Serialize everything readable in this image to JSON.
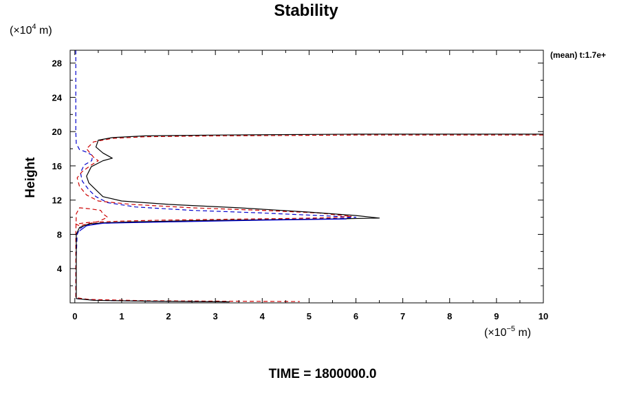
{
  "chart_data": {
    "type": "line",
    "title": "Stability",
    "ylabel": "Height",
    "y_unit": {
      "prefix": "(×10",
      "exp": "4",
      "suffix": " m)"
    },
    "x_unit": {
      "prefix": "(×10",
      "exp": "−5",
      "suffix": " m)"
    },
    "corner_note": "(mean) t:1.7e+",
    "footer": "TIME = 1800000.0",
    "xlim": [
      -0.1,
      10
    ],
    "ylim": [
      0,
      29.5
    ],
    "x_ticks": [
      0,
      1,
      2,
      3,
      4,
      5,
      6,
      7,
      8,
      9,
      10
    ],
    "x_tick_labels": [
      "0",
      "1",
      "2",
      "3",
      "4",
      "5",
      "6",
      "7",
      "8",
      "9",
      "10"
    ],
    "y_ticks": [
      4,
      8,
      12,
      16,
      20,
      24,
      28
    ],
    "y_tick_labels": [
      "4",
      "8",
      "12",
      "16",
      "20",
      "24",
      "28"
    ],
    "series": [
      {
        "color": "#0000cc",
        "dash": "6,4",
        "points": [
          [
            0.02,
            29.5
          ],
          [
            0.02,
            28
          ],
          [
            0.02,
            24
          ],
          [
            0.02,
            20
          ],
          [
            0.03,
            18.6
          ],
          [
            0.1,
            17.9
          ],
          [
            0.25,
            17.6
          ],
          [
            0.38,
            17.2
          ],
          [
            0.36,
            16.6
          ],
          [
            0.2,
            16.1
          ],
          [
            0.12,
            15.2
          ],
          [
            0.16,
            14.2
          ],
          [
            0.3,
            13.2
          ],
          [
            0.45,
            12.4
          ],
          [
            0.7,
            11.7
          ],
          [
            1.3,
            11.2
          ],
          [
            2.5,
            10.8
          ],
          [
            4.0,
            10.5
          ],
          [
            5.2,
            10.2
          ],
          [
            6.0,
            10.0
          ],
          [
            5.6,
            9.85
          ],
          [
            4.4,
            9.75
          ],
          [
            3.0,
            9.62
          ],
          [
            1.8,
            9.5
          ],
          [
            1.0,
            9.38
          ],
          [
            0.45,
            9.25
          ],
          [
            0.2,
            9.05
          ],
          [
            0.1,
            8.6
          ],
          [
            0.05,
            8
          ],
          [
            0.02,
            4
          ],
          [
            0.02,
            0.5
          ],
          [
            0.5,
            0.3
          ],
          [
            1.5,
            0.2
          ],
          [
            2.5,
            0.15
          ],
          [
            3.2,
            0.12
          ]
        ]
      },
      {
        "color": "#cc0000",
        "dash": "6,4",
        "points": [
          [
            10,
            19.6
          ],
          [
            6,
            19.6
          ],
          [
            3,
            19.5
          ],
          [
            1.5,
            19.4
          ],
          [
            0.8,
            19.2
          ],
          [
            0.4,
            18.8
          ],
          [
            0.25,
            18
          ],
          [
            0.4,
            17
          ],
          [
            0.5,
            16.6
          ],
          [
            0.35,
            16.1
          ],
          [
            0.15,
            15.3
          ],
          [
            0.05,
            14.6
          ],
          [
            0.1,
            13.6
          ],
          [
            0.25,
            12.6
          ],
          [
            0.5,
            11.9
          ],
          [
            1.2,
            11.5
          ],
          [
            2.5,
            11.1
          ],
          [
            4.0,
            10.8
          ],
          [
            5.2,
            10.5
          ],
          [
            5.9,
            10.1
          ],
          [
            5.5,
            9.95
          ],
          [
            4.5,
            9.85
          ],
          [
            3.0,
            9.75
          ],
          [
            1.8,
            9.65
          ],
          [
            1.0,
            9.55
          ],
          [
            0.3,
            9.4
          ],
          [
            0.02,
            9.2
          ],
          [
            0.1,
            9.0
          ],
          [
            0.5,
            9.5
          ],
          [
            0.7,
            10.0
          ],
          [
            0.6,
            10.4
          ],
          [
            0.55,
            10.8
          ],
          [
            0.3,
            11.0
          ],
          [
            0.1,
            11.1
          ],
          [
            0.03,
            10.4
          ],
          [
            0.02,
            8
          ],
          [
            0.02,
            4
          ],
          [
            0.02,
            0.6
          ],
          [
            0.3,
            0.4
          ],
          [
            1.5,
            0.25
          ],
          [
            3,
            0.2
          ],
          [
            4.8,
            0.15
          ]
        ]
      },
      {
        "color": "#000000",
        "dash": "",
        "points": [
          [
            10,
            19.7
          ],
          [
            6,
            19.7
          ],
          [
            3,
            19.6
          ],
          [
            1.5,
            19.5
          ],
          [
            0.8,
            19.3
          ],
          [
            0.5,
            19.0
          ],
          [
            0.45,
            18.2
          ],
          [
            0.6,
            17.5
          ],
          [
            0.8,
            16.9
          ],
          [
            0.6,
            16.6
          ],
          [
            0.35,
            15.9
          ],
          [
            0.25,
            14.8
          ],
          [
            0.3,
            14.0
          ],
          [
            0.45,
            13.2
          ],
          [
            0.6,
            12.4
          ],
          [
            1.0,
            11.9
          ],
          [
            2.0,
            11.5
          ],
          [
            3.5,
            11.1
          ],
          [
            5.0,
            10.6
          ],
          [
            6.0,
            10.2
          ],
          [
            6.5,
            9.9
          ],
          [
            5.5,
            9.8
          ],
          [
            4.0,
            9.7
          ],
          [
            2.5,
            9.6
          ],
          [
            1.2,
            9.45
          ],
          [
            0.6,
            9.35
          ],
          [
            0.3,
            9.2
          ],
          [
            0.1,
            8.8
          ],
          [
            0.03,
            8
          ],
          [
            0.03,
            4
          ],
          [
            0.03,
            0.5
          ],
          [
            0.4,
            0.3
          ],
          [
            1.5,
            0.2
          ],
          [
            2.5,
            0.15
          ],
          [
            3.3,
            0.12
          ]
        ]
      },
      {
        "color": "#0000cc",
        "dash": "",
        "points": [
          [
            0.1,
            8.4
          ],
          [
            0.25,
            9.0
          ],
          [
            0.6,
            9.3
          ],
          [
            2.0,
            9.45
          ],
          [
            4.0,
            9.65
          ],
          [
            5.8,
            9.8
          ]
        ]
      }
    ]
  }
}
